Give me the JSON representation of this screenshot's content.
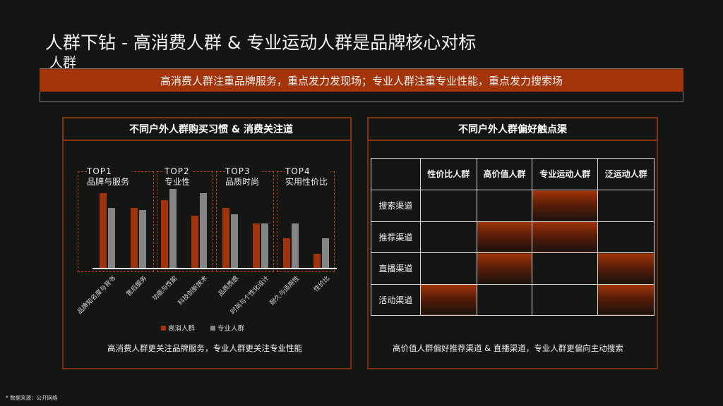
{
  "page": {
    "title": "人群下钻 - 高消费人群 & 专业运动人群是品牌核心对标",
    "title_overflow": "人群",
    "banner": "高消费人群注重品牌服务，重点发力发现场；专业人群注重专业性能，重点发力搜索场",
    "footnote": "* 数据来源：公开网络"
  },
  "left_panel": {
    "heading": "不同户外人群购买习惯 & 消费关注道",
    "groups": [
      {
        "top": "TOP1",
        "name": "品牌与服务"
      },
      {
        "top": "TOP2",
        "name": "专业性"
      },
      {
        "top": "TOP3",
        "name": "品质时尚"
      },
      {
        "top": "TOP4",
        "name": "实用性价比"
      }
    ],
    "legend": [
      {
        "label": "高消人群",
        "color": "#a33409"
      },
      {
        "label": "专业人群",
        "color": "#848484"
      }
    ],
    "caption": "高消费人群更关注品牌服务，专业人群更关注专业性能"
  },
  "chart_data": {
    "type": "bar",
    "title": "不同户外人群购买习惯 & 消费关注道",
    "categories": [
      "品牌知名度与背书",
      "售后服务",
      "功能与性能",
      "科技创新技术",
      "品质质感",
      "时尚与个性化设计",
      "耐久与适用性",
      "性价比"
    ],
    "groups": [
      {
        "label": "TOP1 品牌与服务",
        "categories": [
          "品牌知名度与背书",
          "售后服务"
        ]
      },
      {
        "label": "TOP2 专业性",
        "categories": [
          "功能与性能",
          "科技创新技术"
        ]
      },
      {
        "label": "TOP3 品质时尚",
        "categories": [
          "品质质感",
          "时尚与个性化设计"
        ]
      },
      {
        "label": "TOP4 实用性价比",
        "categories": [
          "耐久与适用性",
          "性价比"
        ]
      }
    ],
    "series": [
      {
        "name": "高消人群",
        "color": "#a33409",
        "values": [
          10,
          8,
          9,
          7,
          8,
          6,
          4,
          2
        ]
      },
      {
        "name": "专业人群",
        "color": "#848484",
        "values": [
          8,
          7.7,
          10.5,
          10,
          7.2,
          6,
          6,
          4
        ]
      }
    ],
    "xlabel": "",
    "ylabel": "",
    "ylim": [
      0,
      11
    ],
    "grid": false,
    "legend_position": "bottom",
    "y_axis_visible": false
  },
  "right_panel": {
    "heading": "不同户外人群偏好触点渠",
    "columns": [
      "",
      "性价比人群",
      "高价值人群",
      "专业运动人群",
      "泛运动人群"
    ],
    "rows": [
      {
        "label": "搜索渠道",
        "highlight": [
          false,
          false,
          true,
          false
        ]
      },
      {
        "label": "推荐渠道",
        "highlight": [
          false,
          true,
          true,
          false
        ]
      },
      {
        "label": "直播渠道",
        "highlight": [
          false,
          true,
          false,
          true
        ]
      },
      {
        "label": "活动渠道",
        "highlight": [
          true,
          false,
          false,
          true
        ]
      }
    ],
    "caption": "高价值人群偏好推荐渠道 & 直播渠道，专业人群更偏向主动搜索"
  },
  "colors": {
    "background": "#141613",
    "accent": "#a33409",
    "panel_border": "#7a2d0f",
    "secondary_bar": "#848484"
  }
}
